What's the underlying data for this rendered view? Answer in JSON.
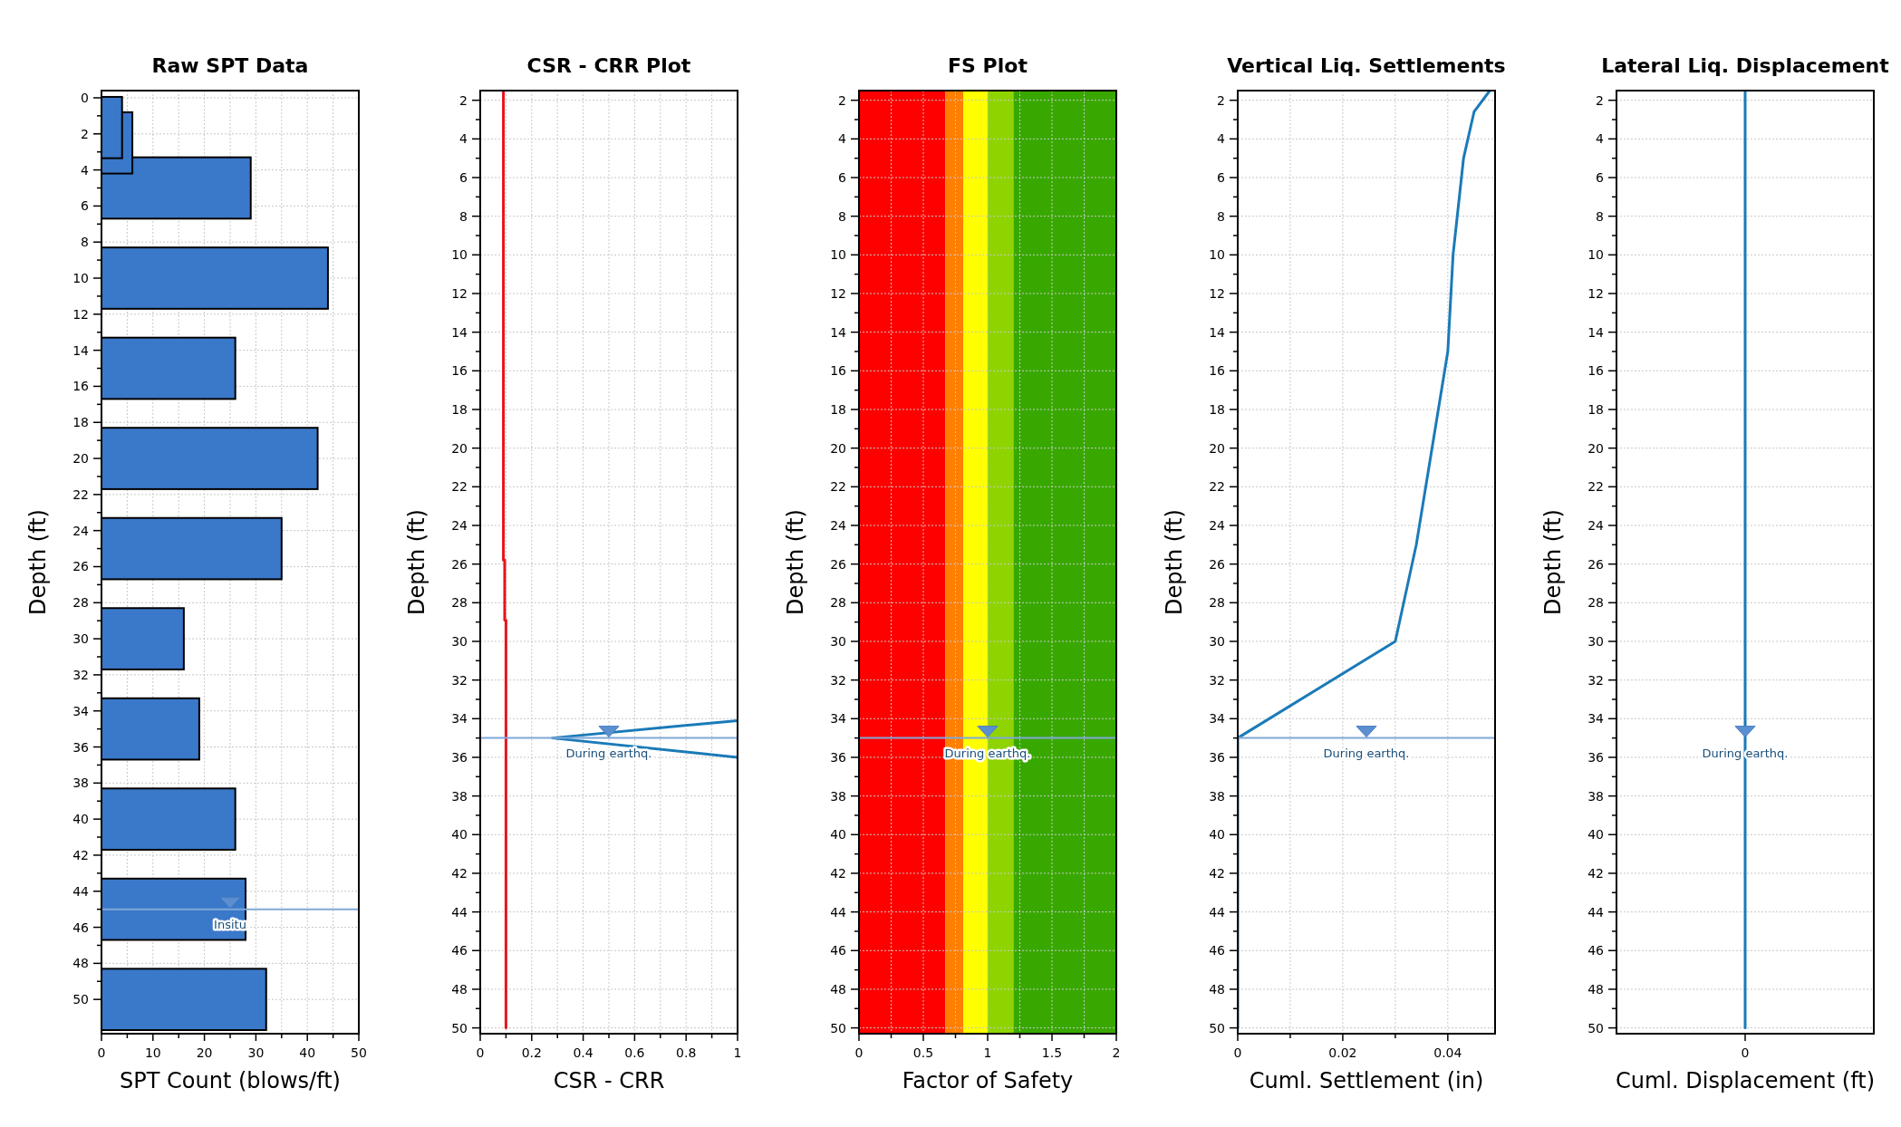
{
  "chart_data": [
    {
      "type": "bar",
      "orientation": "horizontal",
      "title": "Raw SPT Data",
      "xlabel": "SPT Count (blows/ft)",
      "ylabel": "Depth (ft)",
      "x": [
        1.65,
        2.5,
        5,
        10,
        15,
        20,
        25,
        30,
        35,
        40,
        45,
        50
      ],
      "series": [
        {
          "color": "#3a78c9",
          "values": [
            4,
            6,
            29,
            44,
            26,
            42,
            35,
            16,
            19,
            26,
            28,
            32
          ]
        }
      ],
      "xlim": [
        0,
        50
      ],
      "xticks": [
        0,
        {
          "value": 5,
          "label": null
        },
        10,
        {
          "value": 15,
          "label": null
        },
        20,
        {
          "value": 25,
          "label": null
        },
        30,
        {
          "value": 35,
          "label": null
        },
        40,
        {
          "value": 45,
          "label": null
        },
        50
      ],
      "ylim": [
        51.9,
        -0.4
      ],
      "yticks": [
        0,
        2,
        4,
        6,
        8,
        10,
        12,
        14,
        16,
        18,
        20,
        22,
        24,
        26,
        28,
        30,
        32,
        34,
        36,
        38,
        40,
        42,
        44,
        46,
        48,
        50
      ],
      "grid": true,
      "ref_lines": [
        {
          "axis": "y",
          "value": 45,
          "label": "Insitu",
          "color": "#7fa8d8"
        }
      ]
    },
    {
      "type": "line",
      "title": "CSR - CRR Plot",
      "xlabel": "CSR - CRR",
      "ylabel": "Depth (ft)",
      "series": [
        {
          "color": "#e8141b",
          "x": [
            0.09,
            0.09,
            0.095,
            0.095,
            0.1,
            0.1
          ],
          "values": [
            1.5,
            25.8,
            25.8,
            28.9,
            28.9,
            50
          ]
        },
        {
          "color": "#1a7ab8",
          "x": [
            1,
            0.28,
            1
          ],
          "values": [
            34.1,
            35,
            36
          ]
        }
      ],
      "xlim": [
        0,
        1
      ],
      "xticks": [
        0,
        {
          "value": 0.1,
          "label": null
        },
        0.2,
        {
          "value": 0.3,
          "label": null
        },
        0.4,
        {
          "value": 0.5,
          "label": null
        },
        0.6,
        {
          "value": 0.7,
          "label": null
        },
        0.8,
        {
          "value": 0.9,
          "label": null
        },
        1
      ],
      "ylim": [
        50.3,
        1.5
      ],
      "yticks": [
        2,
        4,
        6,
        8,
        10,
        12,
        14,
        16,
        18,
        20,
        22,
        24,
        26,
        28,
        30,
        32,
        34,
        36,
        38,
        40,
        42,
        44,
        46,
        48,
        50
      ],
      "grid": true,
      "ref_lines": [
        {
          "axis": "y",
          "value": 35,
          "label": "During earthq.",
          "color": "#7fa8d8"
        }
      ]
    },
    {
      "type": "line",
      "title": "FS Plot",
      "xlabel": "Factor of Safety",
      "ylabel": "Depth (ft)",
      "bands": [
        {
          "axis": "x",
          "from": 0,
          "to": 0.67,
          "color": "#ff0000"
        },
        {
          "axis": "x",
          "from": 0.67,
          "to": 0.81,
          "color": "#ff7f00"
        },
        {
          "axis": "x",
          "from": 0.81,
          "to": 1,
          "color": "#ffff00"
        },
        {
          "axis": "x",
          "from": 1,
          "to": 1.2,
          "color": "#8fd400"
        },
        {
          "axis": "x",
          "from": 1.2,
          "to": 2,
          "color": "#38a800"
        }
      ],
      "xlim": [
        0,
        2
      ],
      "xticks": [
        0,
        {
          "value": 0.25,
          "label": null
        },
        0.5,
        {
          "value": 0.75,
          "label": null
        },
        1,
        {
          "value": 1.25,
          "label": null
        },
        1.5,
        {
          "value": 1.75,
          "label": null
        },
        2
      ],
      "ylim": [
        50.3,
        1.5
      ],
      "yticks": [
        2,
        4,
        6,
        8,
        10,
        12,
        14,
        16,
        18,
        20,
        22,
        24,
        26,
        28,
        30,
        32,
        34,
        36,
        38,
        40,
        42,
        44,
        46,
        48,
        50
      ],
      "grid": true,
      "ref_lines": [
        {
          "axis": "y",
          "value": 35,
          "label": "During earthq.",
          "color": "#7fa8d8"
        }
      ]
    },
    {
      "type": "line",
      "title": "Vertical Liq. Settlements",
      "xlabel": "Cuml. Settlement (in)",
      "ylabel": "Depth (ft)",
      "series": [
        {
          "color": "#1a7ab8",
          "x": [
            0.048,
            0.045,
            0.043,
            0.041,
            0.04,
            0.034,
            0.03,
            0,
            0
          ],
          "values": [
            1.5,
            2.6,
            5,
            10,
            15,
            25,
            30,
            35,
            50
          ]
        }
      ],
      "xlim": [
        0,
        0.049
      ],
      "xticks": [
        0,
        {
          "value": 0.01,
          "label": null
        },
        0.02,
        {
          "value": 0.03,
          "label": null
        },
        0.04
      ],
      "ylim": [
        50.3,
        1.5
      ],
      "yticks": [
        2,
        4,
        6,
        8,
        10,
        12,
        14,
        16,
        18,
        20,
        22,
        24,
        26,
        28,
        30,
        32,
        34,
        36,
        38,
        40,
        42,
        44,
        46,
        48,
        50
      ],
      "grid": true,
      "ref_lines": [
        {
          "axis": "y",
          "value": 35,
          "label": "During earthq.",
          "color": "#7fa8d8"
        }
      ]
    },
    {
      "type": "line",
      "title": "Lateral Liq. Displacement",
      "xlabel": "Cuml. Displacement (ft)",
      "ylabel": "Depth (ft)",
      "categories": [
        "0"
      ],
      "series": [
        {
          "color": "#1a7ab8",
          "x": [
            "0",
            "0"
          ],
          "values": [
            1.5,
            50
          ]
        }
      ],
      "ylim": [
        50.3,
        1.5
      ],
      "yticks": [
        2,
        4,
        6,
        8,
        10,
        12,
        14,
        16,
        18,
        20,
        22,
        24,
        26,
        28,
        30,
        32,
        34,
        36,
        38,
        40,
        42,
        44,
        46,
        48,
        50
      ],
      "grid": "y",
      "annotations": [
        {
          "text": "During earthq.",
          "x": "0",
          "y": 35
        }
      ]
    }
  ]
}
